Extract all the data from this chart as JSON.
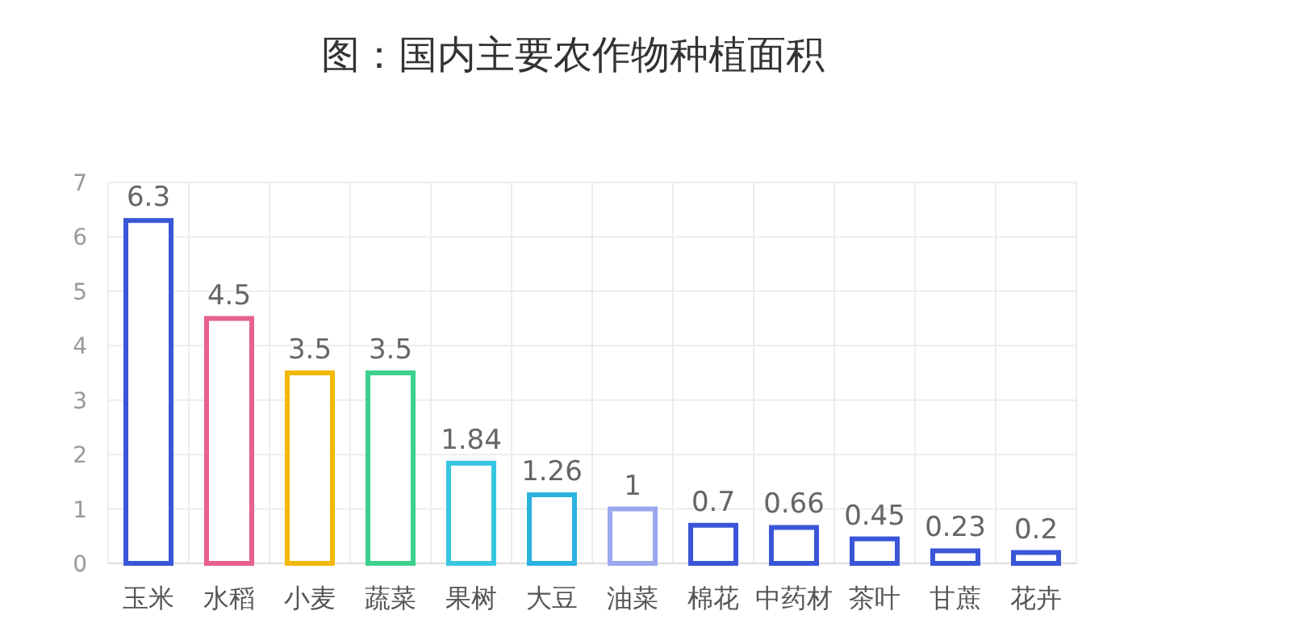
{
  "chart_data": {
    "type": "bar",
    "title": "图：国内主要农作物种植面积",
    "categories": [
      "玉米",
      "水稻",
      "小麦",
      "蔬菜",
      "果树",
      "大豆",
      "油菜",
      "棉花",
      "中药材",
      "茶叶",
      "甘蔗",
      "花卉"
    ],
    "values": [
      6.3,
      4.5,
      3.5,
      3.5,
      1.84,
      1.26,
      1,
      0.7,
      0.66,
      0.45,
      0.23,
      0.2
    ],
    "colors": [
      "#3a55d8",
      "#e8618c",
      "#f2b807",
      "#3ccf8e",
      "#36c6e0",
      "#2bb2e0",
      "#9aa8ee",
      "#3a55d8",
      "#3a55d8",
      "#3a55d8",
      "#3a55d8",
      "#3a55d8"
    ],
    "ylim": [
      0,
      7
    ],
    "yticks": [
      0,
      1,
      2,
      3,
      4,
      5,
      6,
      7
    ],
    "grid": true,
    "data_labels": true
  }
}
